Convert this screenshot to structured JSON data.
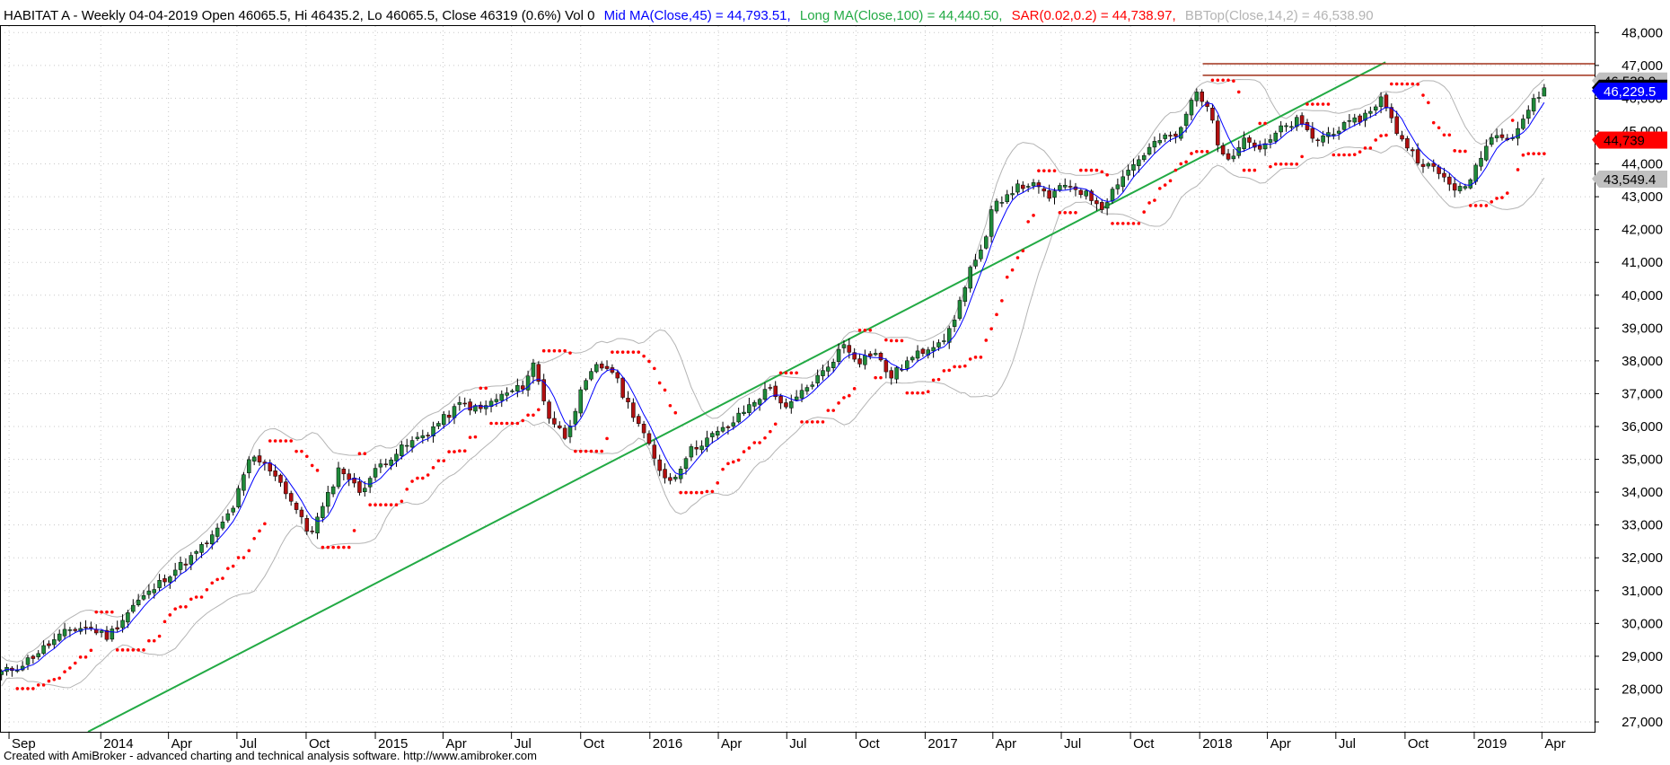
{
  "header": {
    "main": "HABITAT A - Weekly 04-04-2019 Open 46065.5, Hi 46435.2, Lo 46065.5, Close 46319 (0.6%) Vol 0",
    "mid_ma": "Mid MA(Close,45) = 44,793.51,",
    "long_ma": "Long MA(Close,100) = 44,440.50,",
    "sar": "SAR(0.02,0.2) = 44,738.97,",
    "bbtop": "BBTop(Close,14,2) = 46,538.90"
  },
  "footer": "Created with AmiBroker - advanced charting and technical analysis software. http://www.amibroker.com",
  "colors": {
    "up": "#1f8a3a",
    "down": "#b01010",
    "mid_ma": "#0000ff",
    "trendline": "#22aa44",
    "sar": "#ff0000",
    "bbands": "#b4b4b4",
    "resistance": "#a0301a"
  },
  "value_tags": [
    {
      "label": "46,538.9",
      "value": 46538.9,
      "bg": "#c0c0c0",
      "fg": "#000000"
    },
    {
      "label": "46,319",
      "value": 46319,
      "bg": "#000000",
      "fg": "#ffffff"
    },
    {
      "label": "46,229.5",
      "value": 46229.5,
      "bg": "#0000ff",
      "fg": "#ffffff"
    },
    {
      "label": "44,739",
      "value": 44739,
      "bg": "#ff0000",
      "fg": "#000000"
    },
    {
      "label": "43,549.4",
      "value": 43549.4,
      "bg": "#c0c0c0",
      "fg": "#000000"
    }
  ],
  "chart_data": {
    "type": "line",
    "title": "HABITAT A - Weekly",
    "ylim": [
      26700,
      48200
    ],
    "y_ticks": [
      {
        "value": 27000,
        "label": "27,000"
      },
      {
        "value": 28000,
        "label": "28,000"
      },
      {
        "value": 29000,
        "label": "29,000"
      },
      {
        "value": 30000,
        "label": "30,000"
      },
      {
        "value": 31000,
        "label": "31,000"
      },
      {
        "value": 32000,
        "label": "32,000"
      },
      {
        "value": 33000,
        "label": "33,000"
      },
      {
        "value": 34000,
        "label": "34,000"
      },
      {
        "value": 35000,
        "label": "35,000"
      },
      {
        "value": 36000,
        "label": "36,000"
      },
      {
        "value": 37000,
        "label": "37,000"
      },
      {
        "value": 38000,
        "label": "38,000"
      },
      {
        "value": 39000,
        "label": "39,000"
      },
      {
        "value": 40000,
        "label": "40,000"
      },
      {
        "value": 41000,
        "label": "41,000"
      },
      {
        "value": 42000,
        "label": "42,000"
      },
      {
        "value": 43000,
        "label": "43,000"
      },
      {
        "value": 44000,
        "label": "44,000"
      },
      {
        "value": 45000,
        "label": "45,000"
      },
      {
        "value": 46000,
        "label": "46,000"
      },
      {
        "value": 47000,
        "label": "47,000"
      },
      {
        "value": 48000,
        "label": "48,000"
      }
    ],
    "x_ticks": [
      {
        "date": "2013-09-01",
        "label": "Sep"
      },
      {
        "date": "2014-01-01",
        "label": "2014"
      },
      {
        "date": "2014-04-01",
        "label": "Apr"
      },
      {
        "date": "2014-07-01",
        "label": "Jul"
      },
      {
        "date": "2014-10-01",
        "label": "Oct"
      },
      {
        "date": "2015-01-01",
        "label": "2015"
      },
      {
        "date": "2015-04-01",
        "label": "Apr"
      },
      {
        "date": "2015-07-01",
        "label": "Jul"
      },
      {
        "date": "2015-10-01",
        "label": "Oct"
      },
      {
        "date": "2016-01-01",
        "label": "2016"
      },
      {
        "date": "2016-04-01",
        "label": "Apr"
      },
      {
        "date": "2016-07-01",
        "label": "Jul"
      },
      {
        "date": "2016-10-01",
        "label": "Oct"
      },
      {
        "date": "2017-01-01",
        "label": "2017"
      },
      {
        "date": "2017-04-01",
        "label": "Apr"
      },
      {
        "date": "2017-07-01",
        "label": "Jul"
      },
      {
        "date": "2017-10-01",
        "label": "Oct"
      },
      {
        "date": "2018-01-01",
        "label": "2018"
      },
      {
        "date": "2018-04-01",
        "label": "Apr"
      },
      {
        "date": "2018-07-01",
        "label": "Jul"
      },
      {
        "date": "2018-10-01",
        "label": "Oct"
      },
      {
        "date": "2019-01-01",
        "label": "2019"
      },
      {
        "date": "2019-04-01",
        "label": "Apr"
      }
    ],
    "x_range": [
      "2013-08-20",
      "2019-06-10"
    ],
    "close_path": [
      [
        "2013-08-22",
        28500
      ],
      [
        "2013-09-15",
        28700
      ],
      [
        "2013-10-20",
        29300
      ],
      [
        "2013-11-20",
        29800
      ],
      [
        "2013-12-15",
        29900
      ],
      [
        "2014-01-10",
        29600
      ],
      [
        "2014-01-25",
        30000
      ],
      [
        "2014-02-15",
        30600
      ],
      [
        "2014-03-10",
        31000
      ],
      [
        "2014-04-01",
        31500
      ],
      [
        "2014-05-01",
        32000
      ],
      [
        "2014-06-01",
        32700
      ],
      [
        "2014-06-25",
        33500
      ],
      [
        "2014-07-20",
        35100
      ],
      [
        "2014-08-20",
        34600
      ],
      [
        "2014-09-15",
        33600
      ],
      [
        "2014-10-05",
        32700
      ],
      [
        "2014-10-25",
        33600
      ],
      [
        "2014-11-15",
        34800
      ],
      [
        "2014-12-10",
        34000
      ],
      [
        "2015-01-10",
        34900
      ],
      [
        "2015-02-10",
        35400
      ],
      [
        "2015-03-10",
        35800
      ],
      [
        "2015-04-05",
        36300
      ],
      [
        "2015-04-25",
        36700
      ],
      [
        "2015-05-20",
        36500
      ],
      [
        "2015-06-15",
        36900
      ],
      [
        "2015-07-15",
        37200
      ],
      [
        "2015-07-30",
        37900
      ],
      [
        "2015-08-20",
        36300
      ],
      [
        "2015-09-10",
        35700
      ],
      [
        "2015-10-01",
        37000
      ],
      [
        "2015-10-20",
        37800
      ],
      [
        "2015-11-10",
        37800
      ],
      [
        "2015-11-30",
        36800
      ],
      [
        "2015-12-20",
        36000
      ],
      [
        "2016-01-10",
        34800
      ],
      [
        "2016-01-30",
        34300
      ],
      [
        "2016-02-20",
        35200
      ],
      [
        "2016-03-15",
        35600
      ],
      [
        "2016-04-15",
        36000
      ],
      [
        "2016-05-15",
        36700
      ],
      [
        "2016-06-10",
        37200
      ],
      [
        "2016-06-30",
        36500
      ],
      [
        "2016-07-20",
        37000
      ],
      [
        "2016-08-20",
        37700
      ],
      [
        "2016-09-15",
        38500
      ],
      [
        "2016-10-05",
        38000
      ],
      [
        "2016-10-25",
        38300
      ],
      [
        "2016-11-15",
        37500
      ],
      [
        "2016-12-10",
        38000
      ],
      [
        "2017-01-10",
        38500
      ],
      [
        "2017-02-01",
        38800
      ],
      [
        "2017-02-15",
        39700
      ],
      [
        "2017-03-01",
        40800
      ],
      [
        "2017-03-20",
        41400
      ],
      [
        "2017-04-01",
        42700
      ],
      [
        "2017-04-25",
        43200
      ],
      [
        "2017-05-20",
        43400
      ],
      [
        "2017-06-15",
        43000
      ],
      [
        "2017-07-10",
        43400
      ],
      [
        "2017-08-01",
        43100
      ],
      [
        "2017-08-25",
        42700
      ],
      [
        "2017-09-15",
        43500
      ],
      [
        "2017-10-10",
        44100
      ],
      [
        "2017-11-05",
        44700
      ],
      [
        "2017-12-05",
        44900
      ],
      [
        "2017-12-25",
        46200
      ],
      [
        "2018-01-10",
        45900
      ],
      [
        "2018-01-25",
        44600
      ],
      [
        "2018-02-10",
        44200
      ],
      [
        "2018-03-01",
        44800
      ],
      [
        "2018-03-25",
        44400
      ],
      [
        "2018-04-15",
        45000
      ],
      [
        "2018-05-10",
        45300
      ],
      [
        "2018-06-05",
        44700
      ],
      [
        "2018-06-25",
        45000
      ],
      [
        "2018-07-20",
        45200
      ],
      [
        "2018-08-10",
        45500
      ],
      [
        "2018-08-30",
        46000
      ],
      [
        "2018-09-20",
        45000
      ],
      [
        "2018-10-15",
        44200
      ],
      [
        "2018-11-10",
        43800
      ],
      [
        "2018-12-05",
        43300
      ],
      [
        "2018-12-20",
        43200
      ],
      [
        "2019-01-10",
        44300
      ],
      [
        "2019-01-30",
        45000
      ],
      [
        "2019-02-20",
        44800
      ],
      [
        "2019-03-15",
        45700
      ],
      [
        "2019-04-04",
        46319
      ]
    ],
    "trendline": [
      [
        "2013-12-15",
        26700
      ],
      [
        "2018-09-05",
        47100
      ]
    ],
    "resistance_lines": [
      47050,
      46700
    ],
    "series": [
      {
        "name": "Mid MA(Close,45)",
        "value": 44793.51
      },
      {
        "name": "Long MA(Close,100)",
        "value": 44440.5
      },
      {
        "name": "SAR(0.02,0.2)",
        "value": 44738.97
      },
      {
        "name": "BBTop(Close,14,2)",
        "value": 46538.9
      }
    ],
    "last_bar": {
      "date": "2019-04-04",
      "open": 46065.5,
      "high": 46435.2,
      "low": 46065.5,
      "close": 46319,
      "change_pct": 0.6,
      "volume": 0
    },
    "grid": true,
    "legend": "top"
  }
}
